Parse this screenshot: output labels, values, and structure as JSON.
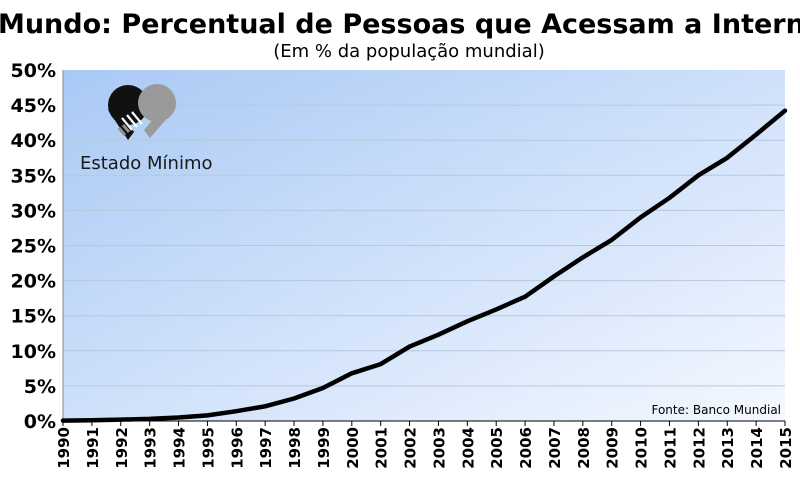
{
  "chart_data": {
    "type": "line",
    "title": "Mundo: Percentual de Pessoas que Acessam a Internet",
    "subtitle": "(Em % da população mundial)",
    "xlabel": "",
    "ylabel": "",
    "x": [
      "1990",
      "1991",
      "1992",
      "1993",
      "1994",
      "1995",
      "1996",
      "1997",
      "1998",
      "1999",
      "2000",
      "2001",
      "2002",
      "2003",
      "2004",
      "2005",
      "2006",
      "2007",
      "2008",
      "2009",
      "2010",
      "2011",
      "2012",
      "2013",
      "2014",
      "2015"
    ],
    "series": [
      {
        "name": "",
        "values": [
          0.05,
          0.1,
          0.2,
          0.3,
          0.5,
          0.8,
          1.4,
          2.1,
          3.2,
          4.7,
          6.8,
          8.1,
          10.6,
          12.3,
          14.2,
          15.9,
          17.7,
          20.6,
          23.3,
          25.8,
          29.0,
          31.8,
          35.0,
          37.5,
          40.8,
          44.2
        ],
        "color": "#000000"
      }
    ],
    "ylim": [
      0,
      50
    ],
    "yticks": [
      "0%",
      "5%",
      "10%",
      "15%",
      "20%",
      "25%",
      "30%",
      "35%",
      "40%",
      "45%",
      "50%"
    ],
    "grid": true,
    "source": "Fonte: Banco Mundial"
  },
  "logo": {
    "text": "Estado Mínimo",
    "icon": "handshake-icon"
  },
  "colors": {
    "plot_gradient_start": "#a9c9f5",
    "plot_gradient_end": "#f2f7ff",
    "line": "#000000",
    "grid": "#b8c8dc"
  }
}
